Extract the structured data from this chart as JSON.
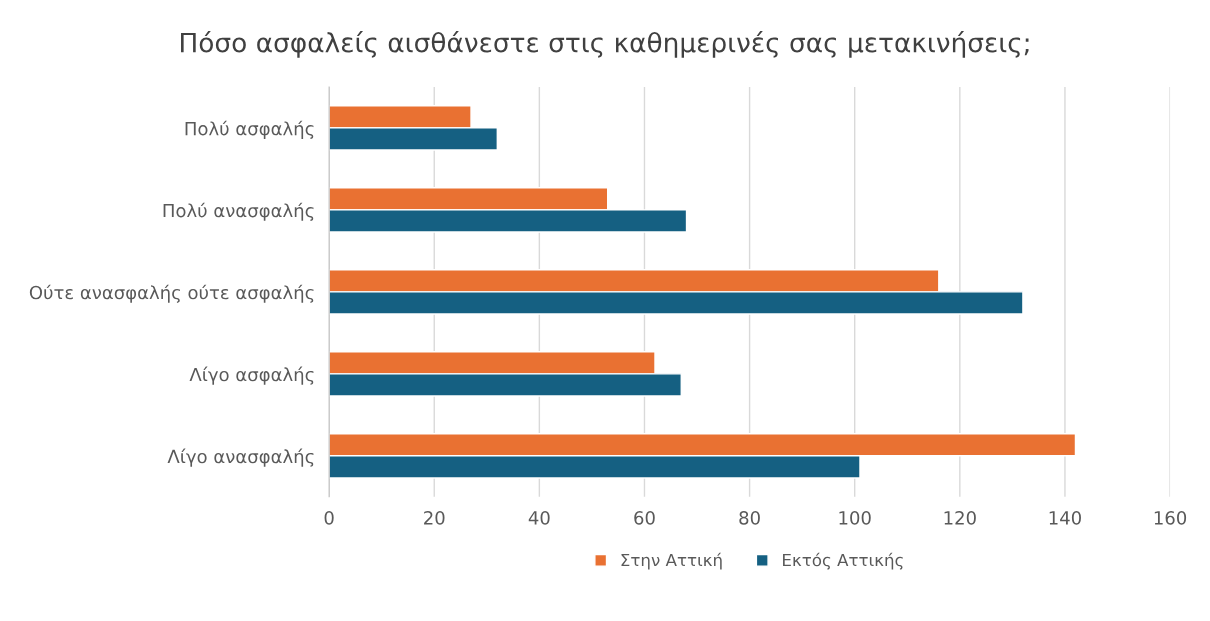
{
  "chart_data": {
    "type": "bar",
    "orientation": "horizontal",
    "title": "Πόσο ασφαλείς αισθάνεστε στις καθημερινές σας μετακινήσεις;",
    "categories": [
      "Πολύ ασφαλής",
      "Πολύ ανασφαλής",
      "Ούτε ανασφαλής ούτε ασφαλής",
      "Λίγο ασφαλής",
      "Λίγο ανασφαλής"
    ],
    "series": [
      {
        "name": "Στην Αττική",
        "color": "#e97132",
        "values": [
          27,
          53,
          116,
          62,
          142
        ]
      },
      {
        "name": "Εκτός Αττικής",
        "color": "#156082",
        "values": [
          32,
          68,
          132,
          67,
          101
        ]
      }
    ],
    "xlim": [
      0,
      160
    ],
    "xticks": [
      0,
      20,
      40,
      60,
      80,
      100,
      120,
      140,
      160
    ],
    "grid": "x",
    "legend": "bottom"
  }
}
